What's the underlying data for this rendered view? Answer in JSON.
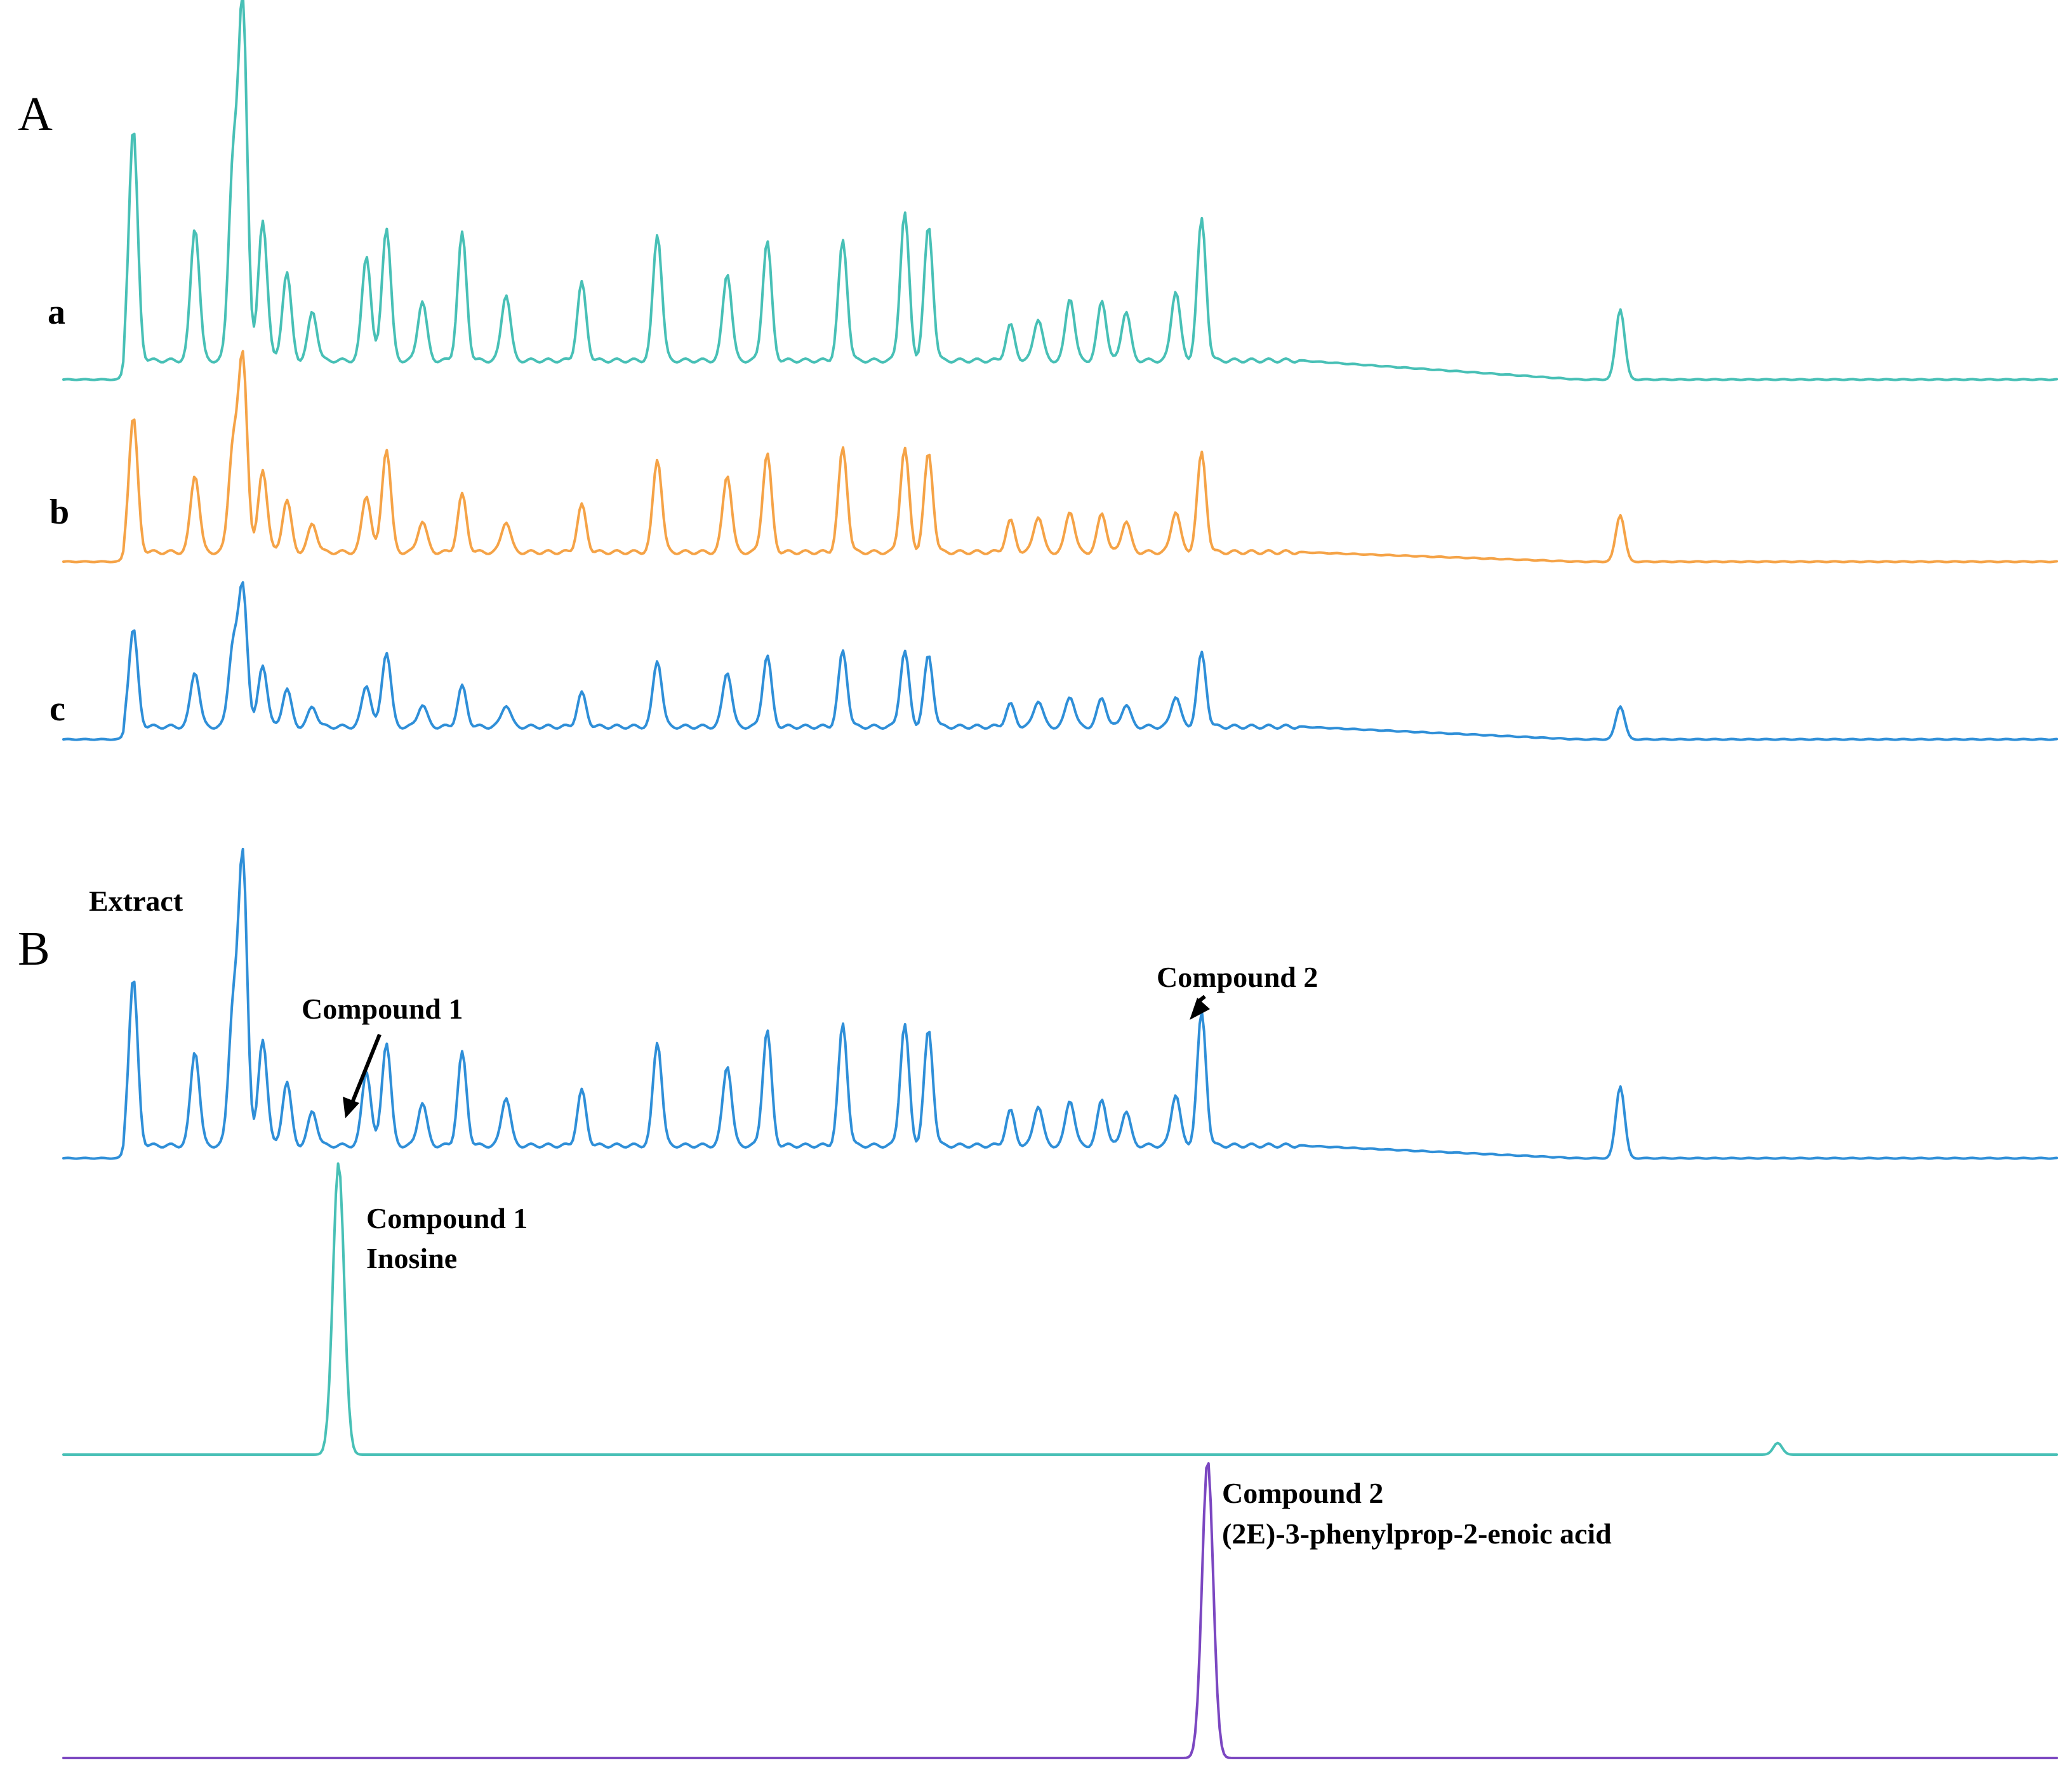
{
  "chart_data": [
    {
      "panel": "A",
      "type": "line",
      "x_range": [
        0,
        100
      ],
      "y_range": [
        0,
        100
      ],
      "grid": false,
      "series": [
        {
          "name": "a",
          "color": "#48c0b6",
          "peaks": [
            [
              3.5,
              66
            ],
            [
              6.6,
              38
            ],
            [
              8.5,
              54
            ],
            [
              9.0,
              100
            ],
            [
              10.0,
              40
            ],
            [
              11.2,
              25
            ],
            [
              12.5,
              14
            ],
            [
              15.2,
              30
            ],
            [
              16.2,
              38
            ],
            [
              18.0,
              17
            ],
            [
              20.0,
              36
            ],
            [
              22.2,
              19
            ],
            [
              26.0,
              22
            ],
            [
              29.8,
              36
            ],
            [
              33.3,
              25
            ],
            [
              35.3,
              34
            ],
            [
              39.1,
              34
            ],
            [
              42.2,
              42
            ],
            [
              43.4,
              38
            ],
            [
              47.5,
              10
            ],
            [
              48.9,
              12
            ],
            [
              50.5,
              18
            ],
            [
              52.1,
              17
            ],
            [
              53.3,
              14
            ],
            [
              55.8,
              20
            ],
            [
              57.1,
              40
            ],
            [
              78.1,
              20
            ]
          ]
        },
        {
          "name": "b",
          "color": "#f5a347",
          "peaks": [
            [
              3.5,
              52
            ],
            [
              6.6,
              30
            ],
            [
              8.5,
              40
            ],
            [
              9.0,
              74
            ],
            [
              10.0,
              32
            ],
            [
              11.2,
              20
            ],
            [
              12.5,
              11
            ],
            [
              15.2,
              22
            ],
            [
              16.2,
              40
            ],
            [
              18.0,
              12
            ],
            [
              20.0,
              22
            ],
            [
              22.2,
              12
            ],
            [
              26.0,
              18
            ],
            [
              29.8,
              36
            ],
            [
              33.3,
              30
            ],
            [
              35.3,
              38
            ],
            [
              39.1,
              40
            ],
            [
              42.2,
              40
            ],
            [
              43.4,
              38
            ],
            [
              47.5,
              12
            ],
            [
              48.9,
              14
            ],
            [
              50.5,
              16
            ],
            [
              52.1,
              15
            ],
            [
              53.3,
              12
            ],
            [
              55.8,
              16
            ],
            [
              57.1,
              38
            ],
            [
              78.1,
              18
            ]
          ]
        },
        {
          "name": "c",
          "color": "#2f8fd8",
          "peaks": [
            [
              3.5,
              44
            ],
            [
              6.6,
              25
            ],
            [
              8.5,
              36
            ],
            [
              9.0,
              62
            ],
            [
              10.0,
              28
            ],
            [
              11.2,
              17
            ],
            [
              12.5,
              9
            ],
            [
              15.2,
              19
            ],
            [
              16.2,
              34
            ],
            [
              18.0,
              10
            ],
            [
              20.0,
              18
            ],
            [
              22.2,
              10
            ],
            [
              26.0,
              15
            ],
            [
              29.8,
              30
            ],
            [
              33.3,
              25
            ],
            [
              35.3,
              32
            ],
            [
              39.1,
              34
            ],
            [
              42.2,
              34
            ],
            [
              43.4,
              32
            ],
            [
              47.5,
              10
            ],
            [
              48.9,
              12
            ],
            [
              50.5,
              14
            ],
            [
              52.1,
              13
            ],
            [
              53.3,
              10
            ],
            [
              55.8,
              14
            ],
            [
              57.1,
              33
            ],
            [
              78.1,
              15
            ]
          ]
        }
      ]
    },
    {
      "panel": "B",
      "type": "line",
      "x_range": [
        0,
        100
      ],
      "y_range": [
        0,
        100
      ],
      "grid": false,
      "series": [
        {
          "name": "Extract",
          "color": "#2f8fd8",
          "peaks": [
            [
              3.5,
              58
            ],
            [
              6.6,
              33
            ],
            [
              8.5,
              46
            ],
            [
              9.0,
              99
            ],
            [
              10.0,
              37
            ],
            [
              11.2,
              22
            ],
            [
              12.5,
              12
            ],
            [
              15.2,
              26
            ],
            [
              16.2,
              36
            ],
            [
              18.0,
              15
            ],
            [
              20.0,
              32
            ],
            [
              22.2,
              17
            ],
            [
              26.0,
              19
            ],
            [
              29.8,
              36
            ],
            [
              33.3,
              28
            ],
            [
              35.3,
              40
            ],
            [
              39.1,
              42
            ],
            [
              42.2,
              42
            ],
            [
              43.4,
              40
            ],
            [
              47.5,
              12
            ],
            [
              48.9,
              14
            ],
            [
              50.5,
              16
            ],
            [
              52.1,
              16
            ],
            [
              53.3,
              12
            ],
            [
              55.8,
              18
            ],
            [
              57.1,
              46
            ],
            [
              78.1,
              25
            ]
          ]
        },
        {
          "name": "Compound 1 Inosine",
          "color": "#48c0b6",
          "peaks": [
            [
              13.8,
              100
            ],
            [
              86.0,
              4
            ]
          ]
        },
        {
          "name": "Compound 2 (2E)-3-phenylprop-2-enoic acid",
          "color": "#7b47c1",
          "peaks": [
            [
              57.4,
              100
            ]
          ]
        }
      ]
    }
  ],
  "labels": {
    "panel_a": "A",
    "panel_b": "B",
    "trace_a": "a",
    "trace_b": "b",
    "trace_c": "c",
    "extract": "Extract",
    "compound1_arrow": "Compound 1",
    "compound2_arrow": "Compound 2",
    "compound1_name_line1": "Compound 1",
    "compound1_name_line2": "Inosine",
    "compound2_name_line1": "Compound 2",
    "compound2_name_line2": "(2E)-3-phenylprop-2-enoic acid"
  }
}
